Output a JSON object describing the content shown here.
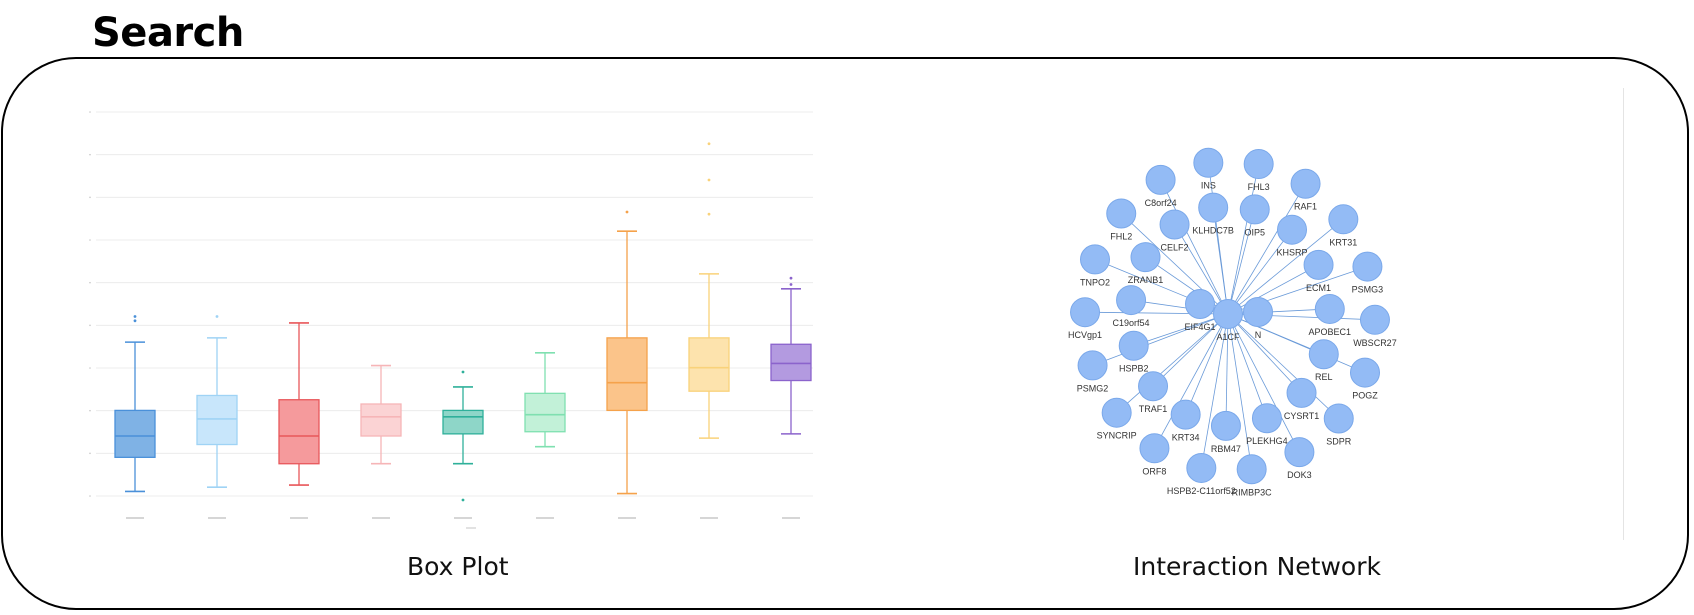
{
  "header": {
    "title": "Search"
  },
  "captions": {
    "box_plot": "Box Plot",
    "network": "Interaction Network"
  },
  "chart_data": {
    "type": "box",
    "series": [
      {
        "color": "#4a90d9",
        "fill": "#7fb2e5",
        "min": 0.2,
        "q1": 1.0,
        "median": 1.5,
        "q3": 2.1,
        "max": 3.7,
        "outliers": [
          4.2,
          4.3
        ]
      },
      {
        "color": "#9fd3f5",
        "fill": "#c8e6fb",
        "min": 0.3,
        "q1": 1.3,
        "median": 1.9,
        "q3": 2.45,
        "max": 3.8,
        "outliers": [
          4.3
        ]
      },
      {
        "color": "#e8575a",
        "fill": "#f59a9c",
        "min": 0.35,
        "q1": 0.85,
        "median": 1.5,
        "q3": 2.35,
        "max": 4.15,
        "outliers": []
      },
      {
        "color": "#f6b5b7",
        "fill": "#fbd3d4",
        "min": 0.85,
        "q1": 1.5,
        "median": 1.95,
        "q3": 2.25,
        "max": 3.15,
        "outliers": []
      },
      {
        "color": "#2fb09a",
        "fill": "#8ed6c8",
        "min": 0.85,
        "q1": 1.55,
        "median": 1.95,
        "q3": 2.1,
        "max": 2.65,
        "outliers": [
          3.0,
          0.0
        ]
      },
      {
        "color": "#7fe0b0",
        "fill": "#c2f1d8",
        "min": 1.25,
        "q1": 1.6,
        "median": 2.0,
        "q3": 2.5,
        "max": 3.45,
        "outliers": []
      },
      {
        "color": "#f5a24b",
        "fill": "#fbc48a",
        "min": 0.15,
        "q1": 2.1,
        "median": 2.75,
        "q3": 3.8,
        "max": 6.3,
        "outliers": [
          6.75
        ]
      },
      {
        "color": "#f9d27a",
        "fill": "#fde3ad",
        "min": 1.45,
        "q1": 2.55,
        "median": 3.1,
        "q3": 3.8,
        "max": 5.3,
        "outliers": [
          6.7,
          7.5,
          8.35
        ]
      },
      {
        "color": "#8b63cc",
        "fill": "#b39ae0",
        "min": 1.55,
        "q1": 2.8,
        "median": 3.2,
        "q3": 3.65,
        "max": 4.95,
        "outliers": [
          5.05,
          5.2
        ]
      }
    ],
    "ylim": [
      0,
      9
    ],
    "grid": true
  },
  "network": {
    "node_color": "#93bbf5",
    "edge_color": "#6a9ad8",
    "center": "A1CF",
    "inner": [
      "EIF4G1",
      "A1CF",
      "N"
    ],
    "nodes": [
      {
        "label": "INS"
      },
      {
        "label": "FHL3"
      },
      {
        "label": "RAF1"
      },
      {
        "label": "KRT31"
      },
      {
        "label": "PSMG3"
      },
      {
        "label": "WBSCR27"
      },
      {
        "label": "POGZ"
      },
      {
        "label": "SDPR"
      },
      {
        "label": "DOK3"
      },
      {
        "label": "RIMBP3C"
      },
      {
        "label": "HSPB2-C11orf52"
      },
      {
        "label": "ORF8"
      },
      {
        "label": "SYNCRIP"
      },
      {
        "label": "PSMG2"
      },
      {
        "label": "HCVgp1"
      },
      {
        "label": "TNPO2"
      },
      {
        "label": "FHL2"
      },
      {
        "label": "C8orf24"
      },
      {
        "label": "OIP5"
      },
      {
        "label": "KHSRP"
      },
      {
        "label": "ECM1"
      },
      {
        "label": "APOBEC1"
      },
      {
        "label": "REL"
      },
      {
        "label": "CYSRT1"
      },
      {
        "label": "PLEKHG4"
      },
      {
        "label": "RBM47"
      },
      {
        "label": "KRT34"
      },
      {
        "label": "TRAF1"
      },
      {
        "label": "HSPB2"
      },
      {
        "label": "C19orf54"
      },
      {
        "label": "ZRANB1"
      },
      {
        "label": "CELF2"
      },
      {
        "label": "KLHDC7B"
      }
    ]
  }
}
